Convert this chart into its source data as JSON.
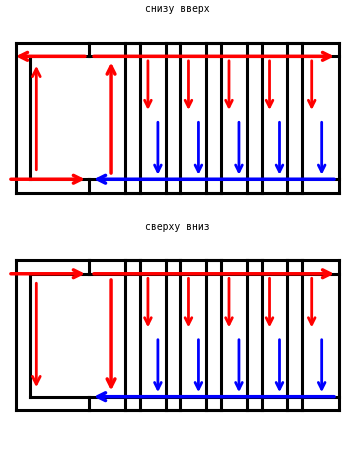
{
  "title1": "снизу вверх",
  "title2": "сверху вниз",
  "bg_color": "#ffffff",
  "line_color": "#000000",
  "red": "#ff0000",
  "blue": "#0000ff"
}
